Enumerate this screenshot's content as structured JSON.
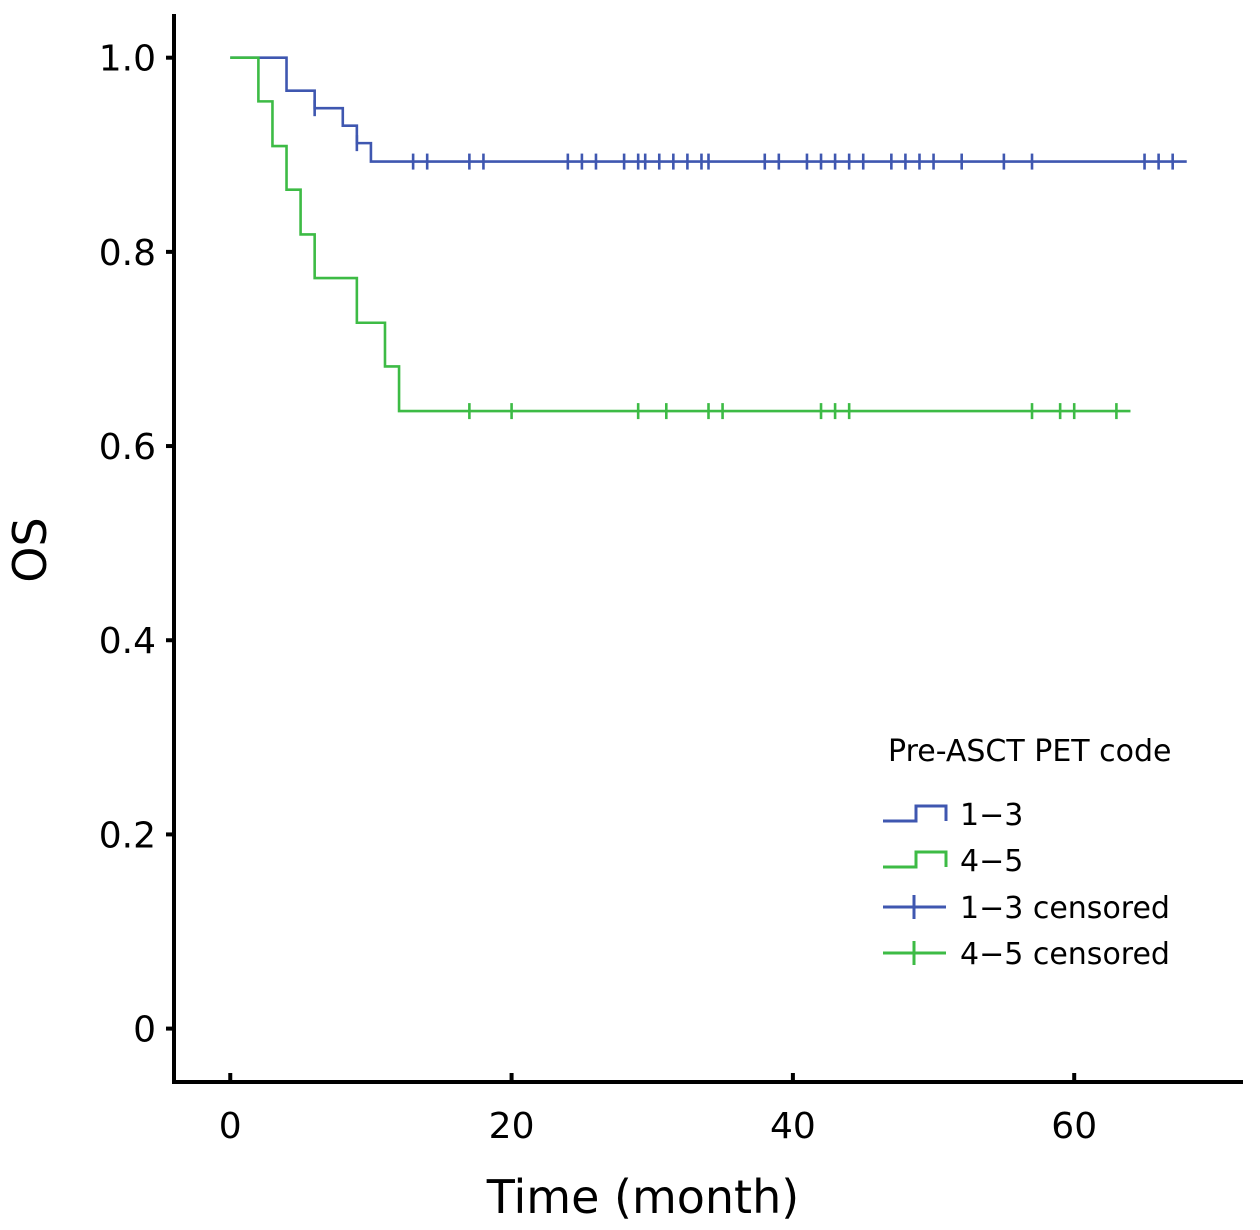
{
  "chart_data": {
    "type": "line",
    "subtype": "kaplan-meier",
    "title": "",
    "xlabel": "Time (month)",
    "ylabel": "OS",
    "xlim": [
      -4,
      72
    ],
    "ylim": [
      -0.055,
      1.045
    ],
    "xticks": [
      0,
      20,
      40,
      60
    ],
    "xtick_labels": [
      "0",
      "20",
      "40",
      "60"
    ],
    "yticks": [
      0,
      0.2,
      0.4,
      0.6,
      0.8,
      1.0
    ],
    "ytick_labels": [
      "0",
      "0.2",
      "0.4",
      "0.6",
      "0.8",
      "1.0"
    ],
    "grid": false,
    "legend": {
      "title": "Pre-ASCT PET code",
      "placement": "bottom-right",
      "entries": [
        "1−3",
        "4−5",
        "1−3 censored",
        "4−5 censored"
      ]
    },
    "series": [
      {
        "name": "1−3",
        "color": "#3f57b0",
        "steps": [
          [
            0,
            1.0
          ],
          [
            4,
            0.966
          ],
          [
            6,
            0.948
          ],
          [
            8,
            0.93
          ],
          [
            9,
            0.912
          ],
          [
            10,
            0.893
          ]
        ],
        "end_x": 68,
        "censored": [
          [
            6,
            0.948
          ],
          [
            9,
            0.912
          ],
          [
            13,
            0.893
          ],
          [
            14,
            0.893
          ],
          [
            17,
            0.893
          ],
          [
            18,
            0.893
          ],
          [
            24,
            0.893
          ],
          [
            25,
            0.893
          ],
          [
            26,
            0.893
          ],
          [
            28,
            0.893
          ],
          [
            29,
            0.893
          ],
          [
            29.5,
            0.893
          ],
          [
            30.5,
            0.893
          ],
          [
            31.5,
            0.893
          ],
          [
            32.5,
            0.893
          ],
          [
            33.5,
            0.893
          ],
          [
            34,
            0.893
          ],
          [
            38,
            0.893
          ],
          [
            39,
            0.893
          ],
          [
            41,
            0.893
          ],
          [
            42,
            0.893
          ],
          [
            43,
            0.893
          ],
          [
            44,
            0.893
          ],
          [
            45,
            0.893
          ],
          [
            47,
            0.893
          ],
          [
            48,
            0.893
          ],
          [
            49,
            0.893
          ],
          [
            50,
            0.893
          ],
          [
            52,
            0.893
          ],
          [
            55,
            0.893
          ],
          [
            57,
            0.893
          ],
          [
            65,
            0.893
          ],
          [
            66,
            0.893
          ],
          [
            67,
            0.893
          ]
        ]
      },
      {
        "name": "4−5",
        "color": "#3dbb45",
        "steps": [
          [
            0,
            1.0
          ],
          [
            2,
            0.955
          ],
          [
            3,
            0.909
          ],
          [
            4,
            0.864
          ],
          [
            5,
            0.818
          ],
          [
            6,
            0.773
          ],
          [
            9,
            0.727
          ],
          [
            11,
            0.682
          ],
          [
            12,
            0.636
          ]
        ],
        "end_x": 64,
        "censored": [
          [
            17,
            0.636
          ],
          [
            20,
            0.636
          ],
          [
            29,
            0.636
          ],
          [
            31,
            0.636
          ],
          [
            34,
            0.636
          ],
          [
            35,
            0.636
          ],
          [
            42,
            0.636
          ],
          [
            43,
            0.636
          ],
          [
            44,
            0.636
          ],
          [
            57,
            0.636
          ],
          [
            59,
            0.636
          ],
          [
            60,
            0.636
          ],
          [
            63,
            0.636
          ]
        ]
      }
    ]
  }
}
